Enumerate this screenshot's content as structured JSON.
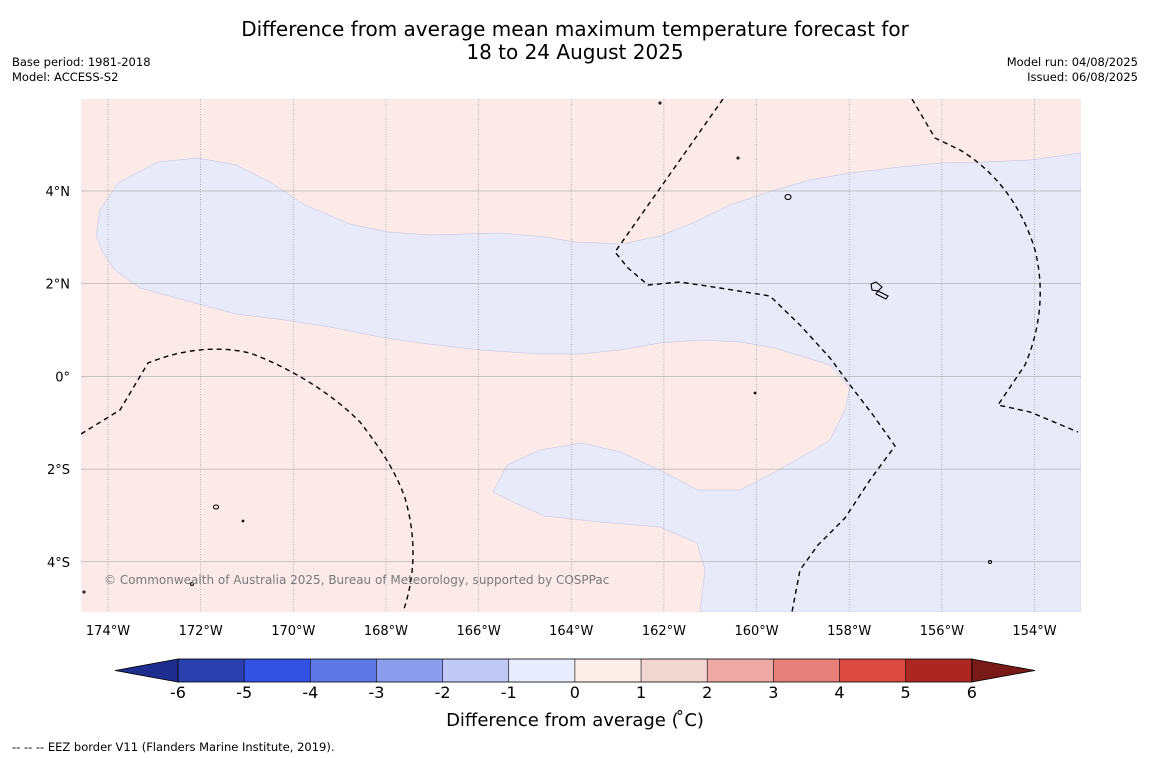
{
  "header": {
    "title_line1": "Difference from average mean maximum temperature forecast for",
    "title_line2": "18 to 24 August 2025",
    "base_period": "Base period: 1981-2018",
    "model": "Model: ACCESS-S2",
    "model_run": "Model run: 04/08/2025",
    "issued": "Issued: 06/08/2025"
  },
  "map": {
    "lat_labels": [
      "4°N",
      "2°N",
      "0°",
      "2°S",
      "4°S"
    ],
    "lon_labels": [
      "174°W",
      "172°W",
      "170°W",
      "168°W",
      "166°W",
      "164°W",
      "162°W",
      "160°W",
      "158°W",
      "156°W",
      "154°W"
    ],
    "copyright": "© Commonwealth of Australia 2025, Bureau of Meteorology, supported by COSPPac",
    "colors": {
      "warm_fill": "#fbeae8",
      "cool_fill": "#e8eafa",
      "grid": "#999999",
      "eez_line": "#000000"
    }
  },
  "colorbar": {
    "labels": [
      "-6",
      "-5",
      "-4",
      "-3",
      "-2",
      "-1",
      "0",
      "1",
      "2",
      "3",
      "4",
      "5",
      "6"
    ],
    "colors": [
      "#1e2e8f",
      "#2a3fae",
      "#3352e3",
      "#5d78e6",
      "#8b9ced",
      "#c0c8f6",
      "#e9ecfc",
      "#fdeee9",
      "#f0d5d1",
      "#eea9a4",
      "#e7807a",
      "#dc4a41",
      "#ac2722",
      "#7a1a18"
    ],
    "title": "Difference from average ( ̊C)"
  },
  "footnote": "--  --  -- EEZ border V11 (Flanders Marine Institute, 2019)."
}
